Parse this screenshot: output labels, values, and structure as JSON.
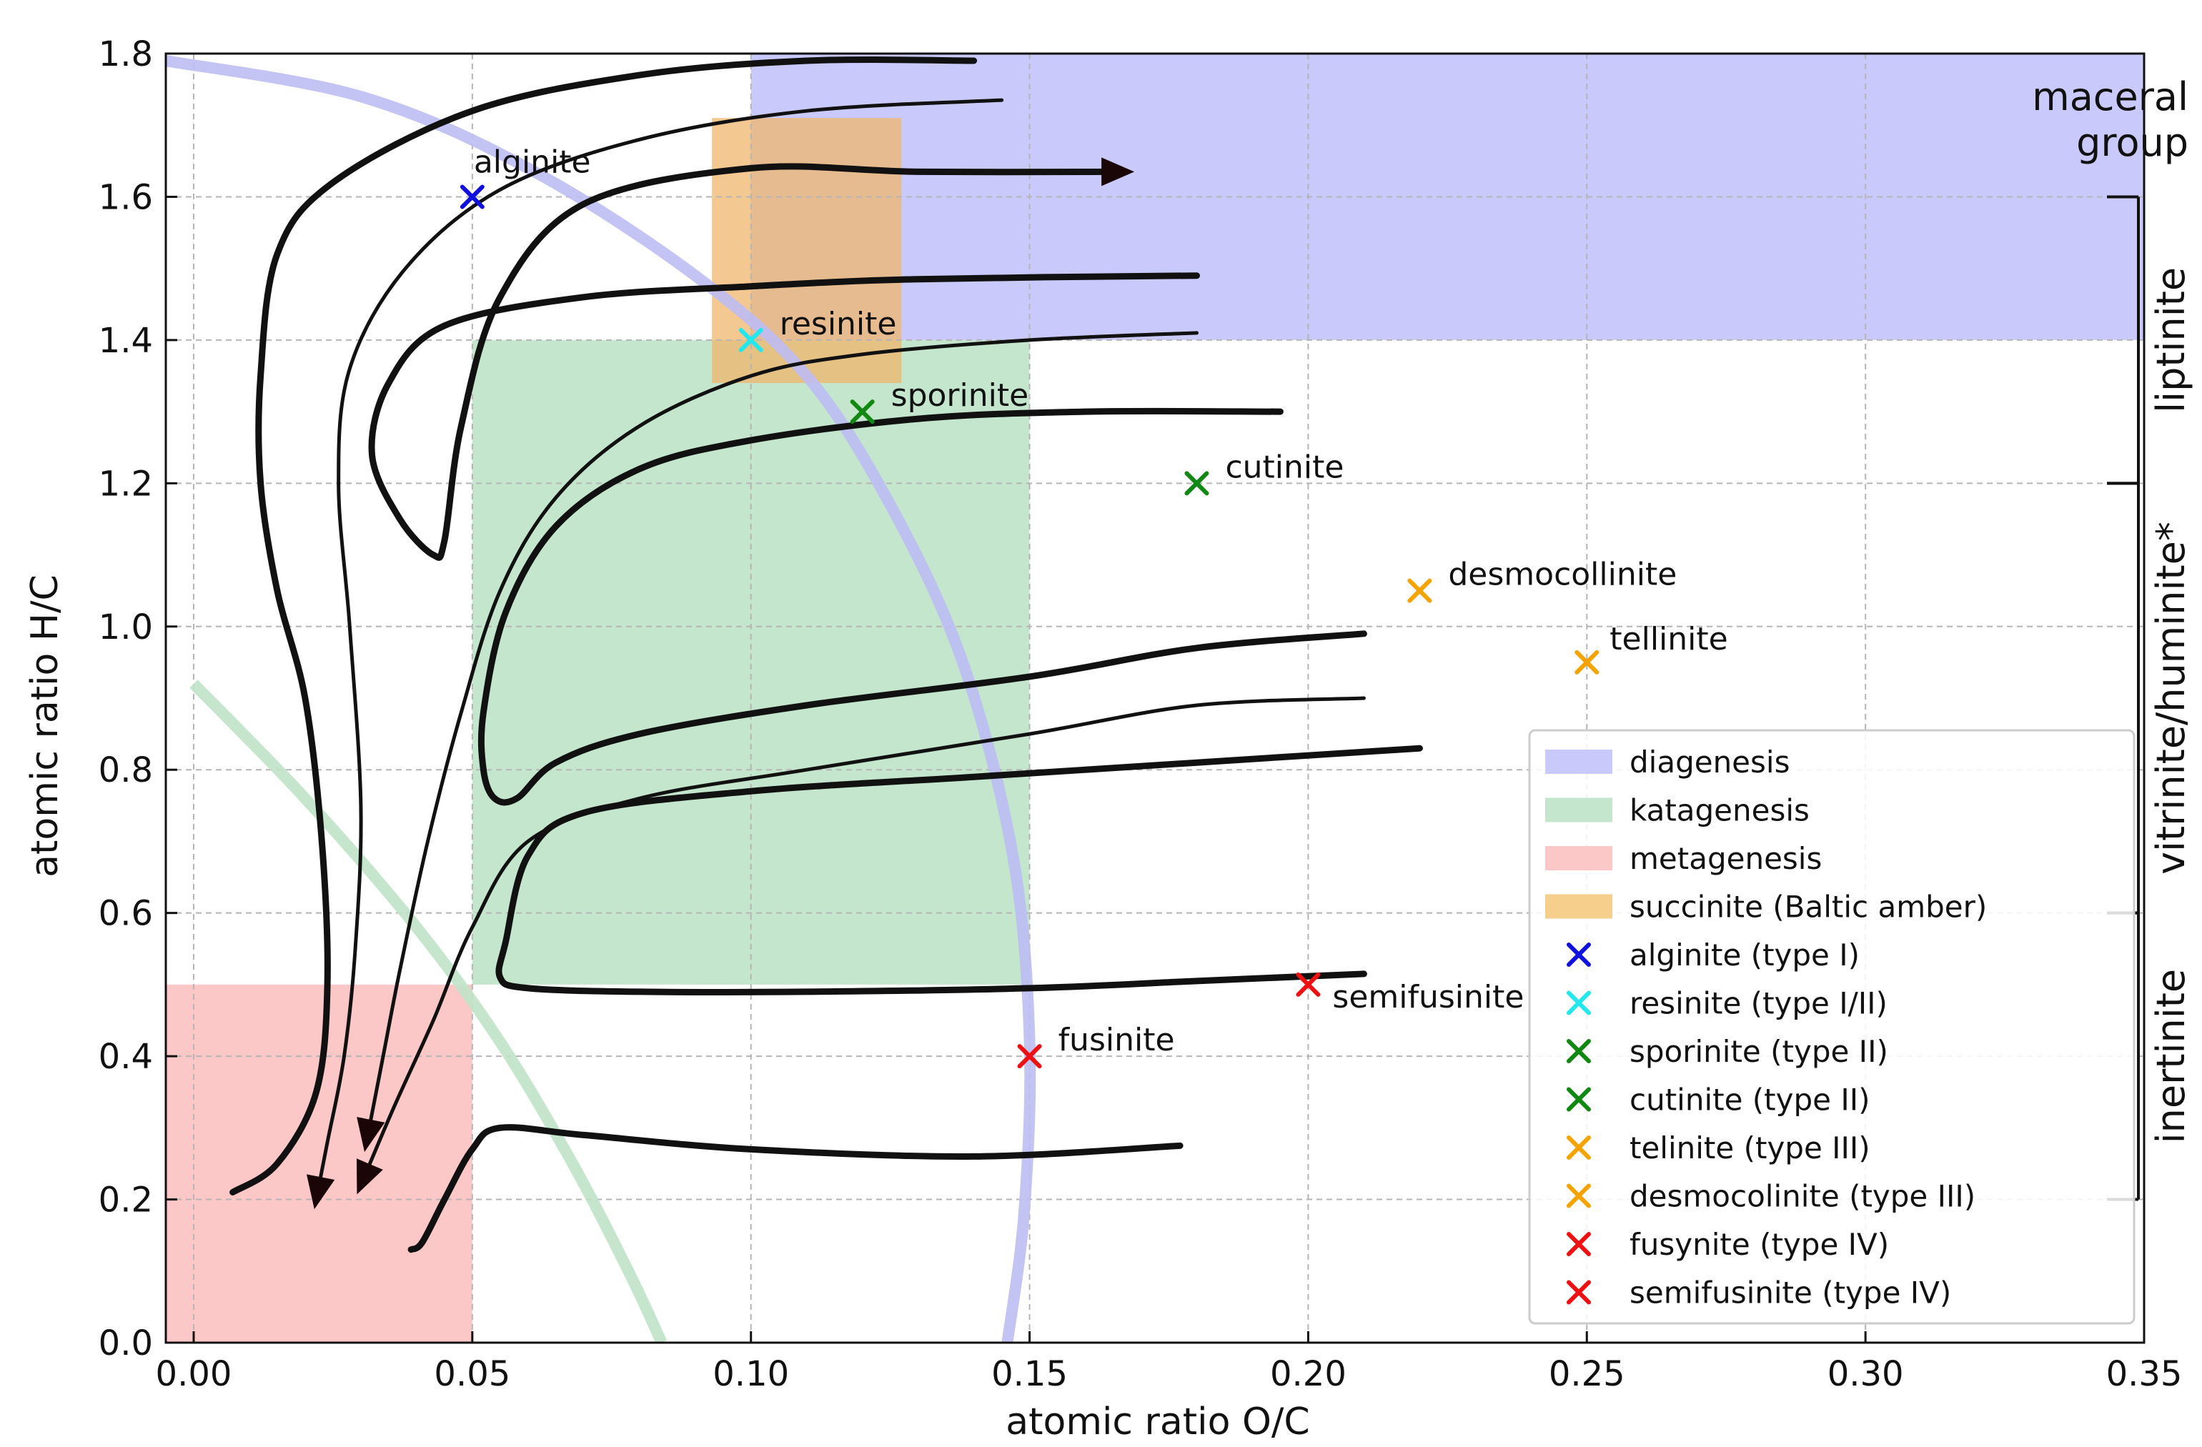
{
  "chart_data": {
    "type": "scatter",
    "title": "",
    "xlabel": "atomic ratio O/C",
    "ylabel": "atomic ratio H/C",
    "xlim": [
      -0.005,
      0.35
    ],
    "ylim": [
      0.0,
      1.8
    ],
    "grid": true,
    "xticks": [
      0.0,
      0.05,
      0.1,
      0.15,
      0.2,
      0.25,
      0.3,
      0.35
    ],
    "xtick_labels": [
      "0.00",
      "0.05",
      "0.10",
      "0.15",
      "0.20",
      "0.25",
      "0.30",
      "0.35"
    ],
    "yticks": [
      0.0,
      0.2,
      0.4,
      0.6,
      0.8,
      1.0,
      1.2,
      1.4,
      1.6,
      1.8
    ],
    "ytick_labels": [
      "0.0",
      "0.2",
      "0.4",
      "0.6",
      "0.8",
      "1.0",
      "1.2",
      "1.4",
      "1.6",
      "1.8"
    ],
    "regions": [
      {
        "name": "diagenesis",
        "color": "#c9c9fb",
        "x": [
          0.1,
          0.35
        ],
        "y": [
          1.4,
          1.8
        ]
      },
      {
        "name": "katagenesis",
        "color": "#c3e6cc",
        "x": [
          0.05,
          0.15
        ],
        "y": [
          0.5,
          1.4
        ]
      },
      {
        "name": "metagenesis",
        "color": "#fcc7c7",
        "x": [
          -0.005,
          0.05
        ],
        "y": [
          0.0,
          0.5
        ]
      },
      {
        "name": "succinite (Baltic amber)",
        "color": "#f0b56c",
        "x": [
          0.093,
          0.127
        ],
        "y": [
          1.34,
          1.71
        ]
      }
    ],
    "points": [
      {
        "label": "alginite",
        "legend": "alginite (type I)",
        "x": 0.05,
        "y": 1.6,
        "color": "#1111dd"
      },
      {
        "label": "resinite",
        "legend": "resinite (type I/II)",
        "x": 0.1,
        "y": 1.4,
        "color": "#22e8ee"
      },
      {
        "label": "sporinite",
        "legend": "sporinite (type II)",
        "x": 0.12,
        "y": 1.3,
        "color": "#118811"
      },
      {
        "label": "cutinite",
        "legend": "cutinite (type II)",
        "x": 0.18,
        "y": 1.2,
        "color": "#118811"
      },
      {
        "label": "desmocollinite",
        "legend": "desmocolinite (type III)",
        "x": 0.22,
        "y": 1.05,
        "color": "#f5a300"
      },
      {
        "label": "tellinite",
        "legend": "telinite (type III)",
        "x": 0.25,
        "y": 0.95,
        "color": "#f5a300"
      },
      {
        "label": "fusinite",
        "legend": "fusynite (type IV)",
        "x": 0.15,
        "y": 0.4,
        "color": "#ee1111"
      },
      {
        "label": "semifusinite",
        "legend": "semifusinite (type IV)",
        "x": 0.2,
        "y": 0.5,
        "color": "#ee1111"
      }
    ],
    "legend": {
      "position": "lower-right",
      "entries": [
        {
          "kind": "patch",
          "label": "diagenesis",
          "color": "#c9c9fb"
        },
        {
          "kind": "patch",
          "label": "katagenesis",
          "color": "#c3e6cc"
        },
        {
          "kind": "patch",
          "label": "metagenesis",
          "color": "#fcc7c7"
        },
        {
          "kind": "patch",
          "label": "succinite (Baltic amber)",
          "color": "#f7cf8c"
        },
        {
          "kind": "marker",
          "label": "alginite (type I)",
          "color": "#1111dd"
        },
        {
          "kind": "marker",
          "label": "resinite (type I/II)",
          "color": "#22e8ee"
        },
        {
          "kind": "marker",
          "label": "sporinite (type II)",
          "color": "#118811"
        },
        {
          "kind": "marker",
          "label": "cutinite (type II)",
          "color": "#118811"
        },
        {
          "kind": "marker",
          "label": "telinite (type III)",
          "color": "#f5a300"
        },
        {
          "kind": "marker",
          "label": "desmocolinite (type III)",
          "color": "#f5a300"
        },
        {
          "kind": "marker",
          "label": "fusynite (type IV)",
          "color": "#ee1111"
        },
        {
          "kind": "marker",
          "label": "semifusinite (type IV)",
          "color": "#ee1111"
        }
      ]
    },
    "maceral_group": {
      "title_lines": [
        "maceral",
        "group"
      ],
      "ranges": [
        {
          "label": "liptinite",
          "y": [
            1.2,
            1.6
          ]
        },
        {
          "label": "vitrinite/huminite*",
          "y": [
            0.6,
            1.2
          ]
        },
        {
          "label": "inertinite",
          "y": [
            0.2,
            0.6
          ]
        }
      ]
    },
    "bands": [
      {
        "name": "blue arc",
        "color": "#bdbdf3",
        "points": [
          [
            -0.005,
            1.79
          ],
          [
            0.03,
            1.74
          ],
          [
            0.06,
            1.64
          ],
          [
            0.09,
            1.49
          ],
          [
            0.11,
            1.35
          ],
          [
            0.125,
            1.17
          ],
          [
            0.138,
            0.95
          ],
          [
            0.147,
            0.68
          ],
          [
            0.15,
            0.42
          ],
          [
            0.149,
            0.18
          ],
          [
            0.146,
            0.0
          ]
        ]
      },
      {
        "name": "green arc",
        "color": "#bfe3c6",
        "points": [
          [
            0.0,
            0.92
          ],
          [
            0.02,
            0.76
          ],
          [
            0.04,
            0.58
          ],
          [
            0.055,
            0.42
          ],
          [
            0.068,
            0.25
          ],
          [
            0.078,
            0.1
          ],
          [
            0.084,
            0.0
          ]
        ]
      }
    ],
    "paths": [
      {
        "width": 9,
        "arrow": true,
        "points": [
          [
            0.18,
            1.49
          ],
          [
            0.13,
            1.485
          ],
          [
            0.1,
            1.475
          ],
          [
            0.07,
            1.46
          ],
          [
            0.045,
            1.42
          ],
          [
            0.035,
            1.34
          ],
          [
            0.032,
            1.24
          ],
          [
            0.037,
            1.15
          ],
          [
            0.043,
            1.1
          ],
          [
            0.045,
            1.12
          ],
          [
            0.048,
            1.28
          ],
          [
            0.055,
            1.46
          ],
          [
            0.07,
            1.59
          ],
          [
            0.1,
            1.64
          ],
          [
            0.13,
            1.635
          ],
          [
            0.167,
            1.635
          ]
        ]
      },
      {
        "width": 9,
        "arrow": false,
        "points": [
          [
            0.14,
            1.79
          ],
          [
            0.11,
            1.79
          ],
          [
            0.08,
            1.77
          ],
          [
            0.05,
            1.72
          ],
          [
            0.025,
            1.62
          ],
          [
            0.015,
            1.52
          ],
          [
            0.012,
            1.35
          ],
          [
            0.012,
            1.2
          ],
          [
            0.015,
            1.05
          ],
          [
            0.02,
            0.9
          ],
          [
            0.023,
            0.7
          ],
          [
            0.024,
            0.5
          ],
          [
            0.022,
            0.35
          ],
          [
            0.015,
            0.25
          ],
          [
            0.007,
            0.21
          ]
        ]
      },
      {
        "width": 5,
        "arrow": true,
        "points": [
          [
            0.145,
            1.735
          ],
          [
            0.11,
            1.72
          ],
          [
            0.08,
            1.68
          ],
          [
            0.055,
            1.61
          ],
          [
            0.038,
            1.5
          ],
          [
            0.028,
            1.36
          ],
          [
            0.026,
            1.2
          ],
          [
            0.028,
            1.0
          ],
          [
            0.03,
            0.75
          ],
          [
            0.029,
            0.55
          ],
          [
            0.027,
            0.4
          ],
          [
            0.024,
            0.28
          ],
          [
            0.022,
            0.2
          ]
        ]
      },
      {
        "width": 5,
        "arrow": true,
        "points": [
          [
            0.18,
            1.41
          ],
          [
            0.15,
            1.4
          ],
          [
            0.12,
            1.38
          ],
          [
            0.1,
            1.35
          ],
          [
            0.08,
            1.28
          ],
          [
            0.065,
            1.18
          ],
          [
            0.055,
            1.05
          ],
          [
            0.048,
            0.88
          ],
          [
            0.042,
            0.7
          ],
          [
            0.037,
            0.52
          ],
          [
            0.034,
            0.4
          ],
          [
            0.031,
            0.28
          ]
        ]
      },
      {
        "width": 9,
        "arrow": false,
        "points": [
          [
            0.195,
            1.3
          ],
          [
            0.16,
            1.3
          ],
          [
            0.13,
            1.29
          ],
          [
            0.1,
            1.26
          ],
          [
            0.08,
            1.22
          ],
          [
            0.065,
            1.14
          ],
          [
            0.056,
            1.02
          ],
          [
            0.052,
            0.88
          ],
          [
            0.052,
            0.8
          ],
          [
            0.054,
            0.76
          ],
          [
            0.058,
            0.76
          ],
          [
            0.065,
            0.81
          ],
          [
            0.08,
            0.85
          ],
          [
            0.11,
            0.89
          ],
          [
            0.15,
            0.93
          ],
          [
            0.18,
            0.97
          ],
          [
            0.21,
            0.99
          ]
        ]
      },
      {
        "width": 5,
        "arrow": true,
        "points": [
          [
            0.21,
            0.9
          ],
          [
            0.18,
            0.89
          ],
          [
            0.15,
            0.85
          ],
          [
            0.11,
            0.8
          ],
          [
            0.08,
            0.76
          ],
          [
            0.06,
            0.7
          ],
          [
            0.05,
            0.58
          ],
          [
            0.043,
            0.45
          ],
          [
            0.036,
            0.33
          ],
          [
            0.03,
            0.22
          ]
        ]
      },
      {
        "width": 9,
        "arrow": false,
        "points": [
          [
            0.22,
            0.83
          ],
          [
            0.18,
            0.81
          ],
          [
            0.14,
            0.79
          ],
          [
            0.1,
            0.77
          ],
          [
            0.07,
            0.74
          ],
          [
            0.06,
            0.68
          ],
          [
            0.056,
            0.56
          ],
          [
            0.055,
            0.51
          ],
          [
            0.06,
            0.495
          ],
          [
            0.08,
            0.49
          ],
          [
            0.11,
            0.49
          ],
          [
            0.15,
            0.495
          ],
          [
            0.18,
            0.505
          ],
          [
            0.21,
            0.515
          ]
        ]
      },
      {
        "width": 9,
        "arrow": false,
        "points": [
          [
            0.177,
            0.275
          ],
          [
            0.14,
            0.26
          ],
          [
            0.1,
            0.27
          ],
          [
            0.07,
            0.29
          ],
          [
            0.055,
            0.3
          ],
          [
            0.05,
            0.27
          ],
          [
            0.045,
            0.2
          ],
          [
            0.041,
            0.14
          ],
          [
            0.039,
            0.13
          ]
        ]
      }
    ]
  }
}
